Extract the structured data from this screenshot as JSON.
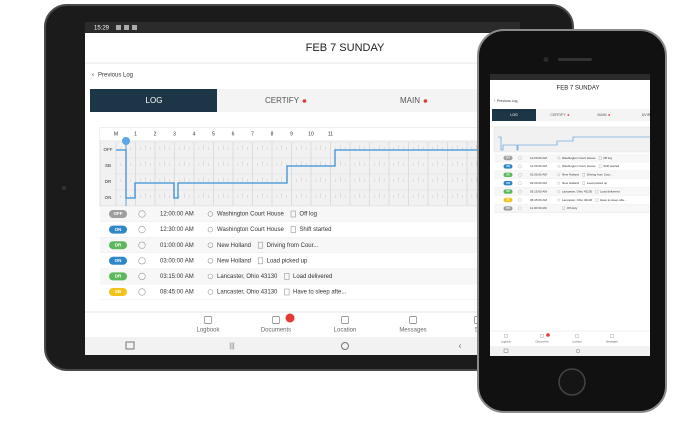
{
  "tablet": {
    "status_time": "15:29",
    "title": "FEB 7 SUNDAY",
    "back": "Previous Log",
    "tabs": [
      "LOG",
      "CERTIFY",
      "MAIN"
    ],
    "hours": [
      "M",
      "1",
      "2",
      "3",
      "4",
      "5",
      "6",
      "7",
      "8",
      "9",
      "10",
      "11"
    ],
    "duty_rows": [
      "OFF",
      "SB",
      "DR",
      "ON"
    ],
    "logs": [
      {
        "status": "OFF",
        "color": "#9e9e9e",
        "time": "12:00:00 AM",
        "location": "Washington Court House",
        "note": "Off log"
      },
      {
        "status": "ON",
        "color": "#2f86c9",
        "time": "12:30:00 AM",
        "location": "Washington Court House",
        "note": "Shift started"
      },
      {
        "status": "DR",
        "color": "#5cb85c",
        "time": "01:00:00 AM",
        "location": "New Holland",
        "note": "Driving from Cour..."
      },
      {
        "status": "ON",
        "color": "#2f86c9",
        "time": "03:00:00 AM",
        "location": "New Holland",
        "note": "Load picked up"
      },
      {
        "status": "DR",
        "color": "#5cb85c",
        "time": "03:15:00 AM",
        "location": "Lancaster, Ohio 43130",
        "note": "Load delivered"
      },
      {
        "status": "SB",
        "color": "#f0c419",
        "time": "08:45:00 AM",
        "location": "Lancaster, Ohio 43130",
        "note": "Have to sleep afte..."
      }
    ],
    "nav": [
      "Logbook",
      "Documents",
      "Location",
      "Messages",
      "Se"
    ]
  },
  "phone": {
    "title": "FEB 7 SUNDAY",
    "back": "Previous Log",
    "tabs": [
      "LOG",
      "CERTIFY",
      "MAIN",
      "DVIR"
    ],
    "logs": [
      {
        "status": "OFF",
        "color": "#9e9e9e",
        "time": "12:00:00 AM",
        "location": "Washington Court House",
        "note": "Off log"
      },
      {
        "status": "ON",
        "color": "#2f86c9",
        "time": "12:30:00 AM",
        "location": "Washington Court House",
        "note": "Shift started"
      },
      {
        "status": "DR",
        "color": "#5cb85c",
        "time": "01:00:00 AM",
        "location": "New Holland",
        "note": "Driving from Cour..."
      },
      {
        "status": "ON",
        "color": "#2f86c9",
        "time": "03:00:00 AM",
        "location": "New Holland",
        "note": "Load picked up"
      },
      {
        "status": "DR",
        "color": "#5cb85c",
        "time": "03:15:00 AM",
        "location": "Lancaster, Ohio 43130",
        "note": "Load delivered"
      },
      {
        "status": "SB",
        "color": "#f0c419",
        "time": "08:45:00 AM",
        "location": "Lancaster, Ohio 43130",
        "note": "Have to sleep afte..."
      },
      {
        "status": "OFF",
        "color": "#9e9e9e",
        "time": "11:30:00 AM",
        "location": "",
        "note": "Off duty"
      }
    ],
    "nav": [
      "Logbook",
      "Documents",
      "Location",
      "Messages"
    ]
  }
}
